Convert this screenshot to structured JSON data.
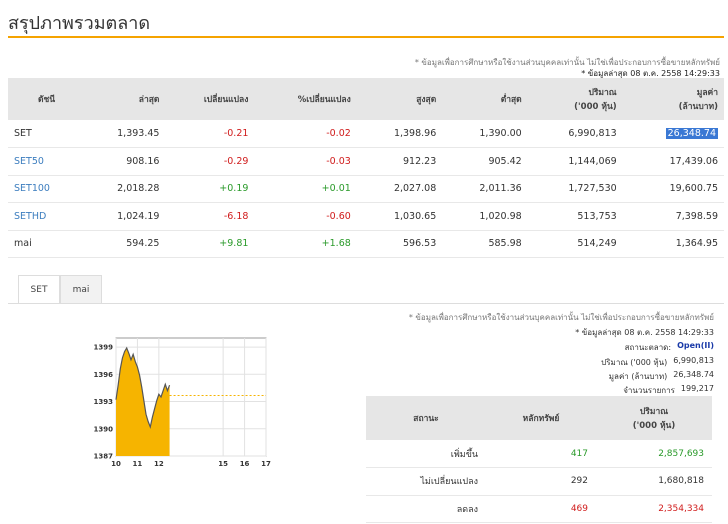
{
  "page": {
    "title": "สรุปภาพรวมตลาด"
  },
  "notes": {
    "disclaimer": "* ข้อมูลเพื่อการศึกษาหรือใช้งานส่วนบุคคลเท่านั้น ไม่ใช่เพื่อประกอบการซื้อขายหลักทรัพย์",
    "updated": "* ข้อมูลล่าสุด 08 ต.ค. 2558 14:29:33"
  },
  "index_table": {
    "headers": [
      "ดัชนี",
      "ล่าสุด",
      "เปลี่ยนแปลง",
      "%เปลี่ยนแปลง",
      "สูงสุด",
      "ต่ำสุด",
      "ปริมาณ\n('000 หุ้น)",
      "มูลค่า\n(ล้านบาท)"
    ],
    "rows": [
      {
        "name": "SET",
        "last": "1,393.45",
        "change": "-0.21",
        "pct": "-0.02",
        "high": "1,398.96",
        "low": "1,390.00",
        "volume": "6,990,813",
        "value": "26,348.74"
      },
      {
        "name": "SET50",
        "last": "908.16",
        "change": "-0.29",
        "pct": "-0.03",
        "high": "912.23",
        "low": "905.42",
        "volume": "1,144,069",
        "value": "17,439.06"
      },
      {
        "name": "SET100",
        "last": "2,018.28",
        "change": "+0.19",
        "pct": "+0.01",
        "high": "2,027.08",
        "low": "2,011.36",
        "volume": "1,727,530",
        "value": "19,600.75"
      },
      {
        "name": "SETHD",
        "last": "1,024.19",
        "change": "-6.18",
        "pct": "-0.60",
        "high": "1,030.65",
        "low": "1,020.98",
        "volume": "513,753",
        "value": "7,398.59"
      },
      {
        "name": "mai",
        "last": "594.25",
        "change": "+9.81",
        "pct": "+1.68",
        "high": "596.53",
        "low": "585.98",
        "volume": "514,249",
        "value": "1,364.95"
      }
    ]
  },
  "tabs": [
    {
      "label": "SET"
    },
    {
      "label": "mai"
    }
  ],
  "chart_data": {
    "type": "area",
    "title": "",
    "y_ticks": [
      "1399",
      "1396",
      "1393",
      "1390",
      "1387"
    ],
    "x_ticks": [
      "10",
      "11",
      "12",
      "15",
      "16",
      "17"
    ],
    "ylim": [
      1387,
      1400
    ],
    "xlim": [
      10,
      17
    ],
    "reference_line": 1393.66,
    "x": [
      10.0,
      10.1,
      10.2,
      10.3,
      10.4,
      10.5,
      10.6,
      10.7,
      10.8,
      10.9,
      11.0,
      11.1,
      11.2,
      11.3,
      11.4,
      11.5,
      11.6,
      11.7,
      11.8,
      11.9,
      12.0,
      12.1,
      12.2,
      12.3,
      12.4,
      12.5
    ],
    "values": [
      1393.2,
      1394.8,
      1396.6,
      1397.8,
      1398.5,
      1398.9,
      1398.3,
      1397.6,
      1398.2,
      1397.4,
      1396.8,
      1395.9,
      1394.6,
      1393.1,
      1391.6,
      1390.8,
      1390.2,
      1391.3,
      1392.2,
      1393.1,
      1393.8,
      1393.5,
      1394.2,
      1394.9,
      1394.2,
      1394.8
    ],
    "fill_color": "#f6b400",
    "line_color": "#555555",
    "grid": true
  },
  "market_info": {
    "disclaimer": "* ข้อมูลเพื่อการศึกษาหรือใช้งานส่วนบุคคลเท่านั้น ไม่ใช่เพื่อประกอบการซื้อขายหลักทรัพย์",
    "updated": "* ข้อมูลล่าสุด 08 ต.ค. 2558 14:29:33",
    "status_label": "สถานะตลาด:",
    "status_value": "Open(II)",
    "volume_label": "ปริมาณ ('000 หุ้น)",
    "volume_value": "6,990,813",
    "value_label": "มูลค่า (ล้านบาท)",
    "value_value": "26,348.74",
    "trades_label": "จำนวนรายการ",
    "trades_value": "199,217"
  },
  "breadth_table": {
    "headers": [
      "สถานะ",
      "หลักทรัพย์",
      "ปริมาณ\n('000 หุ้น)"
    ],
    "rows": [
      {
        "status": "เพิ่มขึ้น",
        "count": "417",
        "volume": "2,857,693"
      },
      {
        "status": "ไม่เปลี่ยนแปลง",
        "count": "292",
        "volume": "1,680,818"
      },
      {
        "status": "ลดลง",
        "count": "469",
        "volume": "2,354,334"
      }
    ]
  },
  "colors": {
    "accent": "#f5a300",
    "link": "#3d7ebf",
    "negative": "#d01c1c",
    "positive": "#2a9a2a",
    "open_status": "#1a3aa8",
    "selection": "#3a78d4"
  }
}
